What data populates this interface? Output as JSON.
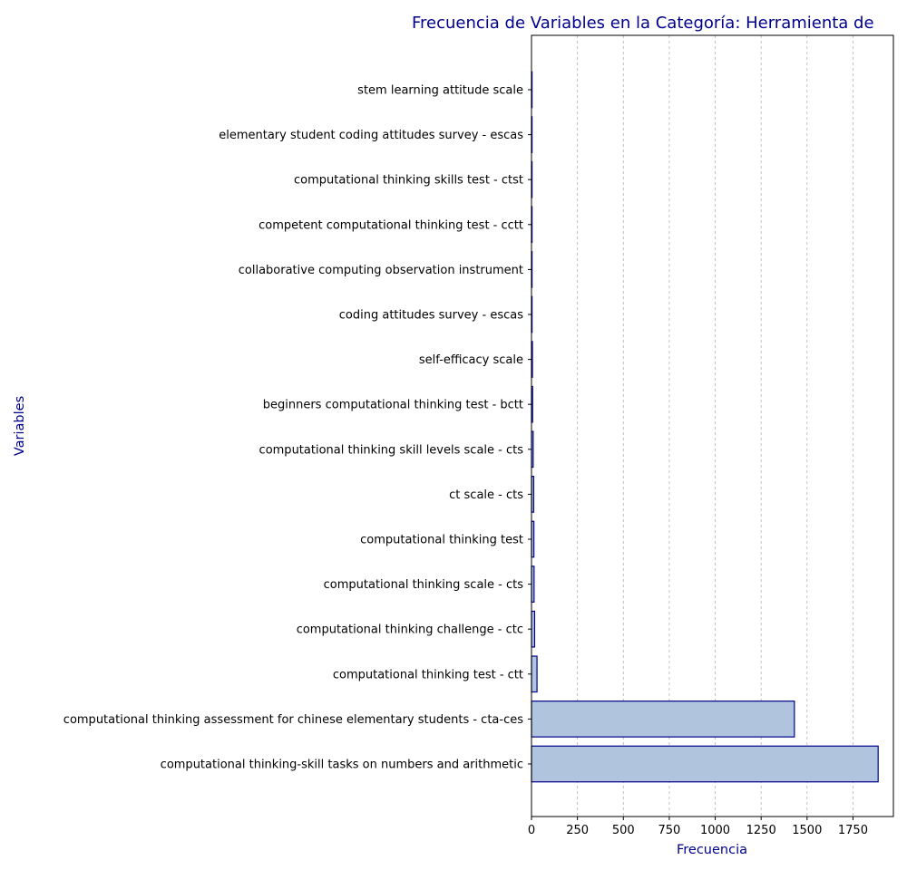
{
  "chart_data": {
    "type": "bar",
    "orientation": "horizontal",
    "title": "Frecuencia de Variables en la Categoría: Herramienta de",
    "xlabel": "Frecuencia",
    "ylabel": "Variables",
    "xlim": [
      0,
      1970
    ],
    "xticks": [
      0,
      250,
      500,
      750,
      1000,
      1250,
      1500,
      1750
    ],
    "grid": "x",
    "colors": {
      "bar_fill": "#b0c4de",
      "bar_edge": "#00008b",
      "title": "#00008b"
    },
    "categories": [
      "stem learning attitude scale",
      "elementary student coding attitudes survey - escas",
      "computational thinking skills test - ctst",
      "competent computational thinking test - cctt",
      "collaborative computing observation instrument",
      "coding attitudes survey - escas",
      "self-efficacy scale",
      "beginners computational thinking test - bctt",
      "computational thinking skill levels scale - cts",
      "ct scale - cts",
      "computational thinking test",
      "computational thinking scale - cts",
      "computational thinking challenge - ctc",
      "computational thinking test - ctt",
      "computational thinking assessment for chinese elementary students - cta-ces",
      "computational thinking-skill tasks on numbers and arithmetic"
    ],
    "values": [
      1,
      1,
      2,
      2,
      2,
      3,
      5,
      6,
      9,
      12,
      13,
      14,
      17,
      30,
      1431,
      1887
    ]
  }
}
